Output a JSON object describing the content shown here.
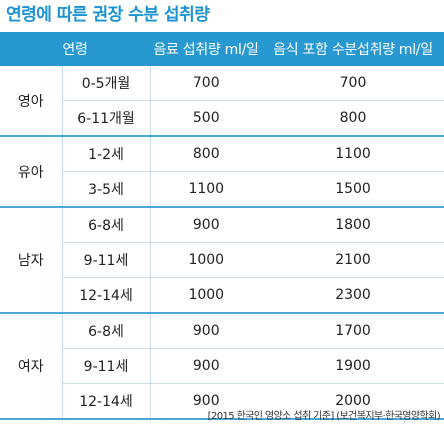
{
  "title": "연령에 따른 권장 수분 섭취량",
  "table": {
    "headers": [
      "연령",
      "음료 섭취량 ml/일",
      "음식 포함 수분섭취량 ml/일"
    ],
    "groups": [
      {
        "name": "영아",
        "rows": [
          {
            "age": "0-5개월",
            "drink": "700",
            "total": "700"
          },
          {
            "age": "6-11개월",
            "drink": "500",
            "total": "800"
          }
        ]
      },
      {
        "name": "유아",
        "rows": [
          {
            "age": "1-2세",
            "drink": "800",
            "total": "1100"
          },
          {
            "age": "3-5세",
            "drink": "1100",
            "total": "1500"
          }
        ]
      },
      {
        "name": "남자",
        "rows": [
          {
            "age": "6-8세",
            "drink": "900",
            "total": "1800"
          },
          {
            "age": "9-11세",
            "drink": "1000",
            "total": "2100"
          },
          {
            "age": "12-14세",
            "drink": "1000",
            "total": "2300"
          }
        ]
      },
      {
        "name": "여자",
        "rows": [
          {
            "age": "6-8세",
            "drink": "900",
            "total": "1700"
          },
          {
            "age": "9-11세",
            "drink": "900",
            "total": "1900"
          },
          {
            "age": "12-14세",
            "drink": "900",
            "total": "2000"
          }
        ]
      }
    ]
  },
  "source": "[2015 한국인 영양소 섭취 기준] (보건복지부·한국영양학회)"
}
